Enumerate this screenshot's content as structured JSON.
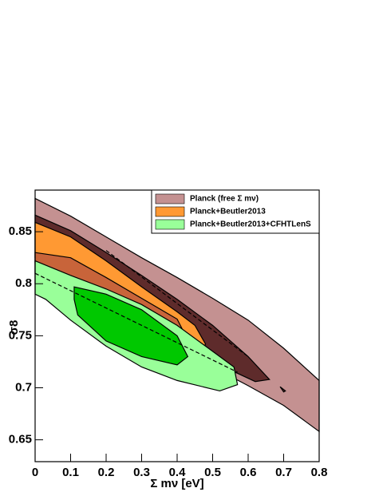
{
  "chart_data": {
    "type": "contour",
    "xlabel": "Σ mν [eV]",
    "ylabel": "σ8",
    "xlim": [
      0,
      0.8
    ],
    "ylim": [
      0.629,
      0.89
    ],
    "xticks": [
      0,
      0.1,
      0.2,
      0.3,
      0.4,
      0.5,
      0.6,
      0.7,
      0.8
    ],
    "yticks": [
      0.65,
      0.7,
      0.75,
      0.8,
      0.85
    ],
    "legend_loc": "upper right",
    "series": [
      {
        "name": "Planck (free Σ mν)",
        "color": "#c49191",
        "contours": [
          {
            "color": "#c49191",
            "x": [
              0,
              0.1,
              0.2,
              0.3,
              0.4,
              0.5,
              0.6,
              0.7,
              0.8,
              0.8,
              0.7,
              0.6,
              0.5,
              0.4,
              0.3,
              0.2,
              0.1,
              0
            ],
            "y": [
              0.882,
              0.865,
              0.845,
              0.825,
              0.806,
              0.786,
              0.765,
              0.738,
              0.707,
              0.658,
              0.683,
              0.702,
              0.72,
              0.74,
              0.76,
              0.78,
              0.8,
              0.82
            ]
          },
          {
            "color": "#5e2b2b",
            "x": [
              0,
              0.1,
              0.2,
              0.3,
              0.4,
              0.5,
              0.6,
              0.66,
              0.62,
              0.5,
              0.4,
              0.3,
              0.2,
              0.1,
              0
            ],
            "y": [
              0.866,
              0.851,
              0.83,
              0.808,
              0.785,
              0.76,
              0.73,
              0.708,
              0.706,
              0.725,
              0.745,
              0.765,
              0.785,
              0.805,
              0.825
            ]
          },
          {
            "color": "#5e2b2b",
            "x": [
              0.69,
              0.705,
              0.7
            ],
            "y": [
              0.701,
              0.697,
              0.696
            ]
          }
        ]
      },
      {
        "name": "Planck+Beutler2013",
        "color": "#ff9933",
        "contours": [
          {
            "color": "#ff9933",
            "x": [
              0,
              0.1,
              0.2,
              0.3,
              0.4,
              0.45,
              0.48,
              0.45,
              0.35,
              0.2,
              0.1,
              0
            ],
            "y": [
              0.859,
              0.845,
              0.822,
              0.797,
              0.773,
              0.76,
              0.742,
              0.727,
              0.735,
              0.76,
              0.78,
              0.8
            ]
          },
          {
            "color": "#c8643a",
            "x": [
              0,
              0.1,
              0.2,
              0.3,
              0.4,
              0.43,
              0.38,
              0.25,
              0.1,
              0
            ],
            "y": [
              0.83,
              0.825,
              0.806,
              0.786,
              0.766,
              0.746,
              0.735,
              0.755,
              0.78,
              0.81
            ]
          }
        ]
      },
      {
        "name": "Planck+Beutler2013+CFHTLenS",
        "color": "#99ff99",
        "contours": [
          {
            "color": "#99ff99",
            "x": [
              0,
              0.1,
              0.2,
              0.3,
              0.4,
              0.5,
              0.56,
              0.57,
              0.52,
              0.4,
              0.3,
              0.2,
              0.1,
              0.03,
              0
            ],
            "y": [
              0.822,
              0.808,
              0.795,
              0.78,
              0.76,
              0.735,
              0.72,
              0.703,
              0.697,
              0.707,
              0.72,
              0.74,
              0.765,
              0.785,
              0.79
            ]
          },
          {
            "color": "#00c800",
            "x": [
              0.11,
              0.2,
              0.3,
              0.4,
              0.43,
              0.4,
              0.3,
              0.2,
              0.12,
              0.11
            ],
            "y": [
              0.797,
              0.79,
              0.775,
              0.75,
              0.73,
              0.722,
              0.73,
              0.745,
              0.77,
              0.785
            ]
          }
        ]
      }
    ],
    "lines": [
      {
        "color": "#000000",
        "dash": true,
        "x": [
          0,
          0.57
        ],
        "y": [
          0.81,
          0.715
        ]
      },
      {
        "color": "#000000",
        "dash": true,
        "x": [
          0.2,
          0.6
        ],
        "y": [
          0.832,
          0.73
        ]
      }
    ]
  }
}
